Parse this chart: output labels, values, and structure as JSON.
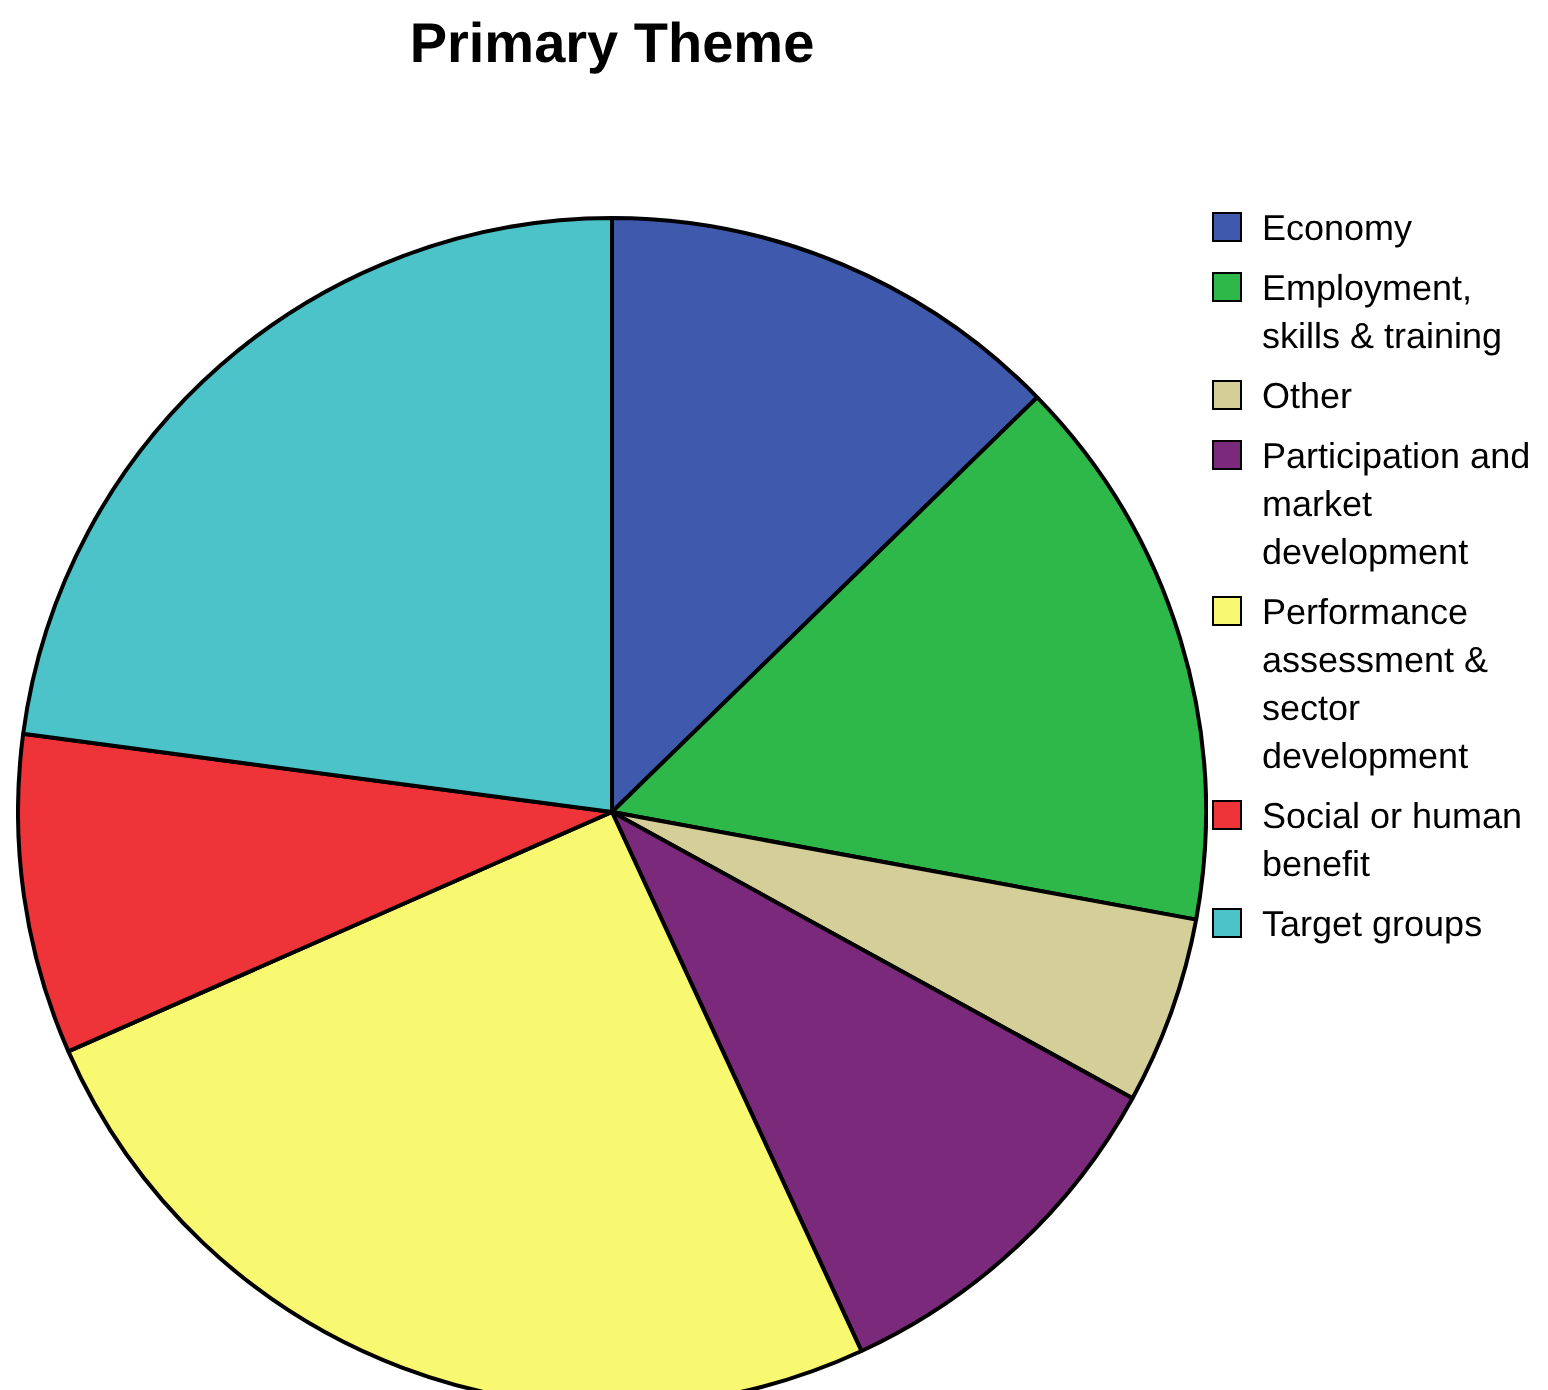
{
  "chart_data": {
    "type": "pie",
    "title": "Primary Theme",
    "categories": [
      "Economy",
      "Employment, skills & training",
      "Other",
      "Participation and market development",
      "Performance assessment & sector development",
      "Social or human benefit",
      "Target groups"
    ],
    "values": [
      12.7,
      15.2,
      5.1,
      10.1,
      25.3,
      8.7,
      22.9
    ],
    "colors": [
      "#3f5aad",
      "#2fb84a",
      "#d4cf98",
      "#7b297b",
      "#f9f871",
      "#ef3439",
      "#4bc3c8"
    ],
    "legend": "right"
  }
}
